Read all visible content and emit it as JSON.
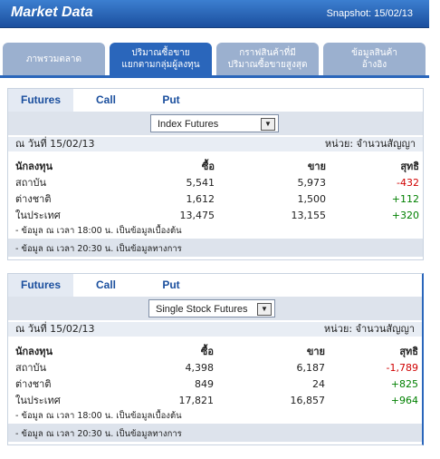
{
  "header": {
    "title": "Market Data",
    "snapshot": "Snapshot: 15/02/13"
  },
  "tabs": [
    [
      "ภาพรวมตลาด"
    ],
    [
      "ปริมาณซื้อขาย",
      "แยกตามกลุ่มผู้ลงทุน"
    ],
    [
      "กราฟสินค้าที่มี",
      "ปริมาณซื้อขายสูงสุด"
    ],
    [
      "ข้อมูลสินค้า",
      "อ้างอิง"
    ]
  ],
  "panels": [
    {
      "subtabs": [
        "Futures",
        "Call",
        "Put"
      ],
      "select": "Index Futures",
      "date": "ณ วันที่ 15/02/13",
      "unit": "หน่วย: จำนวนสัญญา",
      "columns": [
        "นักลงทุน",
        "ซื้อ",
        "ขาย",
        "สุทธิ"
      ],
      "rows": [
        [
          "สถาบัน",
          "5,541",
          "5,973",
          "-432"
        ],
        [
          "ต่างชาติ",
          "1,612",
          "1,500",
          "+112"
        ],
        [
          "ในประเทศ",
          "13,475",
          "13,155",
          "+320"
        ]
      ],
      "notes": [
        "- ข้อมูล ณ เวลา 18:00 น. เป็นข้อมูลเบื้องต้น",
        "- ข้อมูล ณ เวลา 20:30 น. เป็นข้อมูลทางการ"
      ]
    },
    {
      "subtabs": [
        "Futures",
        "Call",
        "Put"
      ],
      "select": "Single Stock Futures",
      "date": "ณ วันที่ 15/02/13",
      "unit": "หน่วย: จำนวนสัญญา",
      "columns": [
        "นักลงทุน",
        "ซื้อ",
        "ขาย",
        "สุทธิ"
      ],
      "rows": [
        [
          "สถาบัน",
          "4,398",
          "6,187",
          "-1,789"
        ],
        [
          "ต่างชาติ",
          "849",
          "24",
          "+825"
        ],
        [
          "ในประเทศ",
          "17,821",
          "16,857",
          "+964"
        ]
      ],
      "notes": [
        "- ข้อมูล ณ เวลา 18:00 น. เป็นข้อมูลเบื้องต้น",
        "- ข้อมูล ณ เวลา 20:30 น. เป็นข้อมูลทางการ"
      ]
    }
  ]
}
